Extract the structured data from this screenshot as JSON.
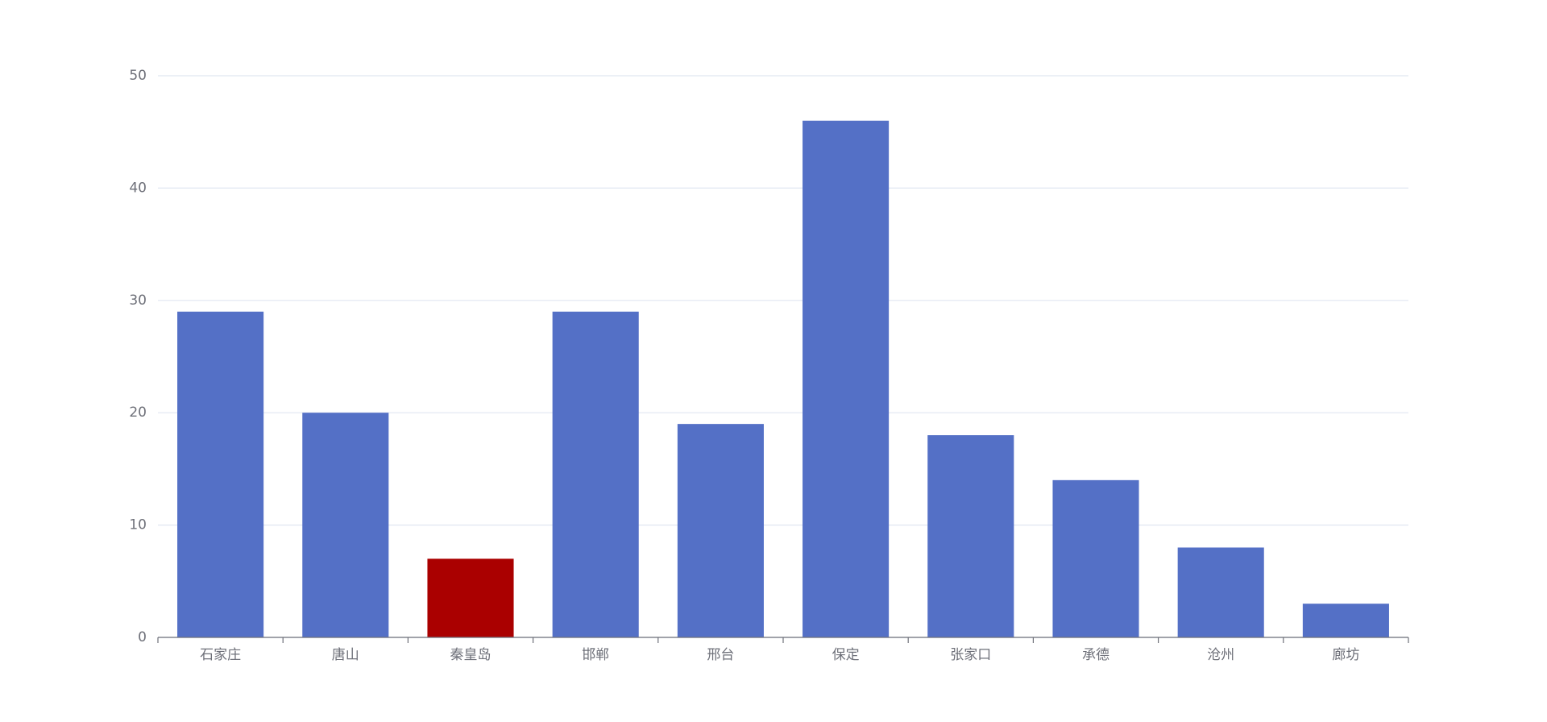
{
  "chart_data": {
    "type": "bar",
    "categories": [
      "石家庄",
      "唐山",
      "秦皇岛",
      "邯郸",
      "邢台",
      "保定",
      "张家口",
      "承德",
      "沧州",
      "廊坊"
    ],
    "values": [
      29,
      20,
      7,
      29,
      19,
      46,
      18,
      14,
      8,
      3
    ],
    "colors": [
      "#5470c6",
      "#5470c6",
      "#aa0000",
      "#5470c6",
      "#5470c6",
      "#5470c6",
      "#5470c6",
      "#5470c6",
      "#5470c6",
      "#5470c6"
    ],
    "ylim": [
      0,
      50
    ],
    "yticks": [
      0,
      10,
      20,
      30,
      40,
      50
    ],
    "grid": true
  }
}
